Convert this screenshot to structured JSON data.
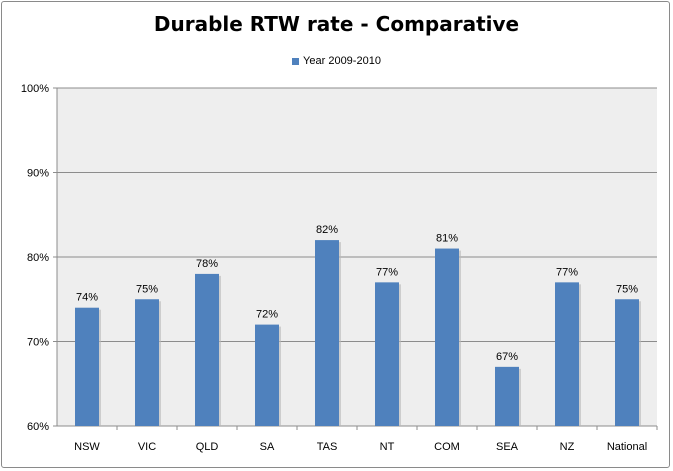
{
  "chart_data": {
    "type": "bar",
    "title": "Durable RTW rate - Comparative",
    "xlabel": "",
    "ylabel": "",
    "categories": [
      "NSW",
      "VIC",
      "QLD",
      "SA",
      "TAS",
      "NT",
      "COM",
      "SEA",
      "NZ",
      "National"
    ],
    "series": [
      {
        "name": "Year 2009-2010",
        "values": [
          74,
          75,
          78,
          72,
          82,
          77,
          81,
          67,
          77,
          75
        ]
      }
    ],
    "data_labels": [
      "74%",
      "75%",
      "78%",
      "72%",
      "82%",
      "77%",
      "81%",
      "67%",
      "77%",
      "75%"
    ],
    "ylim": [
      60,
      100
    ],
    "yticks": [
      60,
      70,
      80,
      90,
      100
    ],
    "ytick_labels": [
      "60%",
      "70%",
      "80%",
      "90%",
      "100%"
    ],
    "grid": true,
    "legend_position": "top",
    "colors": {
      "bar": "#4f81bd",
      "plot_background": "#eeeeee",
      "gridline": "#8c8c8c"
    }
  }
}
